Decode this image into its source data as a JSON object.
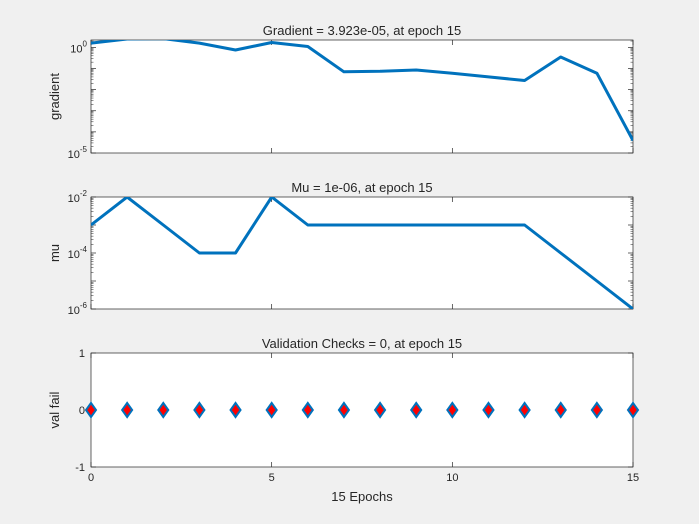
{
  "colors": {
    "background": "#f0f0f0",
    "axes_face": "#ffffff",
    "axis_line": "#262626",
    "line": "#0072bd",
    "marker_face": "#ff0000",
    "marker_edge": "#0072bd"
  },
  "chart_data": [
    {
      "type": "line",
      "title": "Gradient = 3.923e-05, at epoch 15",
      "ylabel": "gradient",
      "xlabel": "",
      "yscale": "log",
      "xlim": [
        0,
        15
      ],
      "ylim_exponents": [
        -5,
        0.35
      ],
      "yticks": [
        {
          "base": "10",
          "exp": "0"
        },
        {
          "base": "10",
          "exp": "-5"
        }
      ],
      "x": [
        0,
        1,
        2,
        3,
        4,
        5,
        6,
        7,
        8,
        9,
        10,
        11,
        12,
        13,
        14,
        15
      ],
      "y": [
        1.6,
        2.5,
        2.6,
        1.6,
        0.75,
        1.7,
        1.1,
        0.07,
        0.074,
        0.085,
        0.06,
        0.04,
        0.027,
        0.35,
        0.06,
        3.92e-05
      ],
      "series_style": "line",
      "grid": false
    },
    {
      "type": "line",
      "title": "Mu = 1e-06, at epoch 15",
      "ylabel": "mu",
      "xlabel": "",
      "yscale": "log",
      "xlim": [
        0,
        15
      ],
      "ylim_exponents": [
        -6,
        -2
      ],
      "yticks": [
        {
          "base": "10",
          "exp": "-2"
        },
        {
          "base": "10",
          "exp": "-4"
        },
        {
          "base": "10",
          "exp": "-6"
        }
      ],
      "x": [
        0,
        1,
        2,
        3,
        4,
        5,
        6,
        7,
        8,
        9,
        10,
        11,
        12,
        13,
        14,
        15
      ],
      "y": [
        0.001,
        0.01,
        0.001,
        0.0001,
        0.0001,
        0.01,
        0.001,
        0.001,
        0.001,
        0.001,
        0.001,
        0.001,
        0.001,
        0.0001,
        1e-05,
        1e-06
      ],
      "series_style": "line",
      "grid": false
    },
    {
      "type": "scatter",
      "title": "Validation Checks = 0, at epoch 15",
      "ylabel": "val fail",
      "xlabel": "15 Epochs",
      "yscale": "linear",
      "xlim": [
        0,
        15
      ],
      "ylim": [
        -1,
        1
      ],
      "yticks": [
        {
          "base": "1",
          "exp": ""
        },
        {
          "base": "0",
          "exp": ""
        },
        {
          "base": "-1",
          "exp": ""
        }
      ],
      "xticks": [
        "0",
        "5",
        "10",
        "15"
      ],
      "x": [
        0,
        1,
        2,
        3,
        4,
        5,
        6,
        7,
        8,
        9,
        10,
        11,
        12,
        13,
        14,
        15
      ],
      "y": [
        0,
        0,
        0,
        0,
        0,
        0,
        0,
        0,
        0,
        0,
        0,
        0,
        0,
        0,
        0,
        0
      ],
      "series_style": "diamond-markers",
      "grid": false
    }
  ]
}
